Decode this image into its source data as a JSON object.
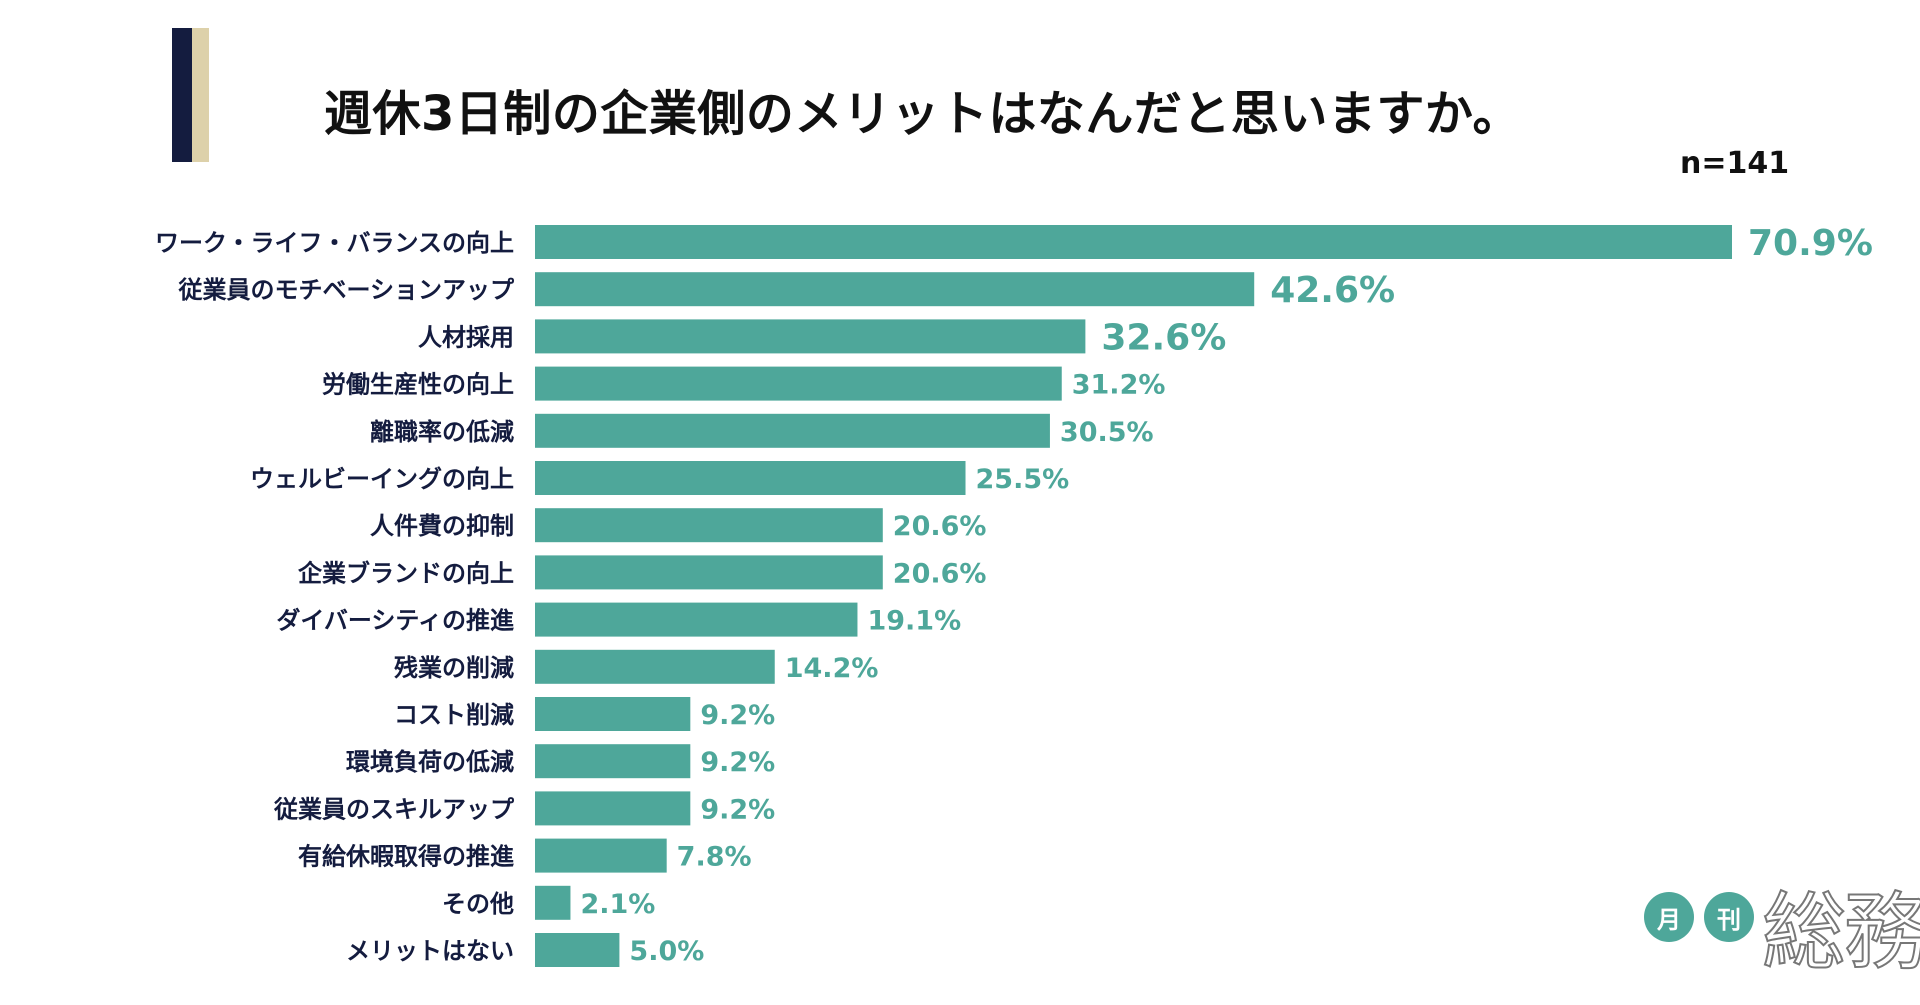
{
  "title": "週休3日制の企業側のメリットはなんだと思いますか。",
  "sample_size": "n=141",
  "logo": {
    "circle1": "月",
    "circle2": "刊",
    "main": "総務"
  },
  "colors": {
    "bar": "#4ea79a",
    "value_text": "#4ea79a",
    "label_text": "#141c3f",
    "accent_navy": "#141c3f",
    "accent_beige": "#ddd1aa"
  },
  "chart_data": {
    "type": "bar",
    "orientation": "horizontal",
    "unit": "%",
    "categories": [
      "ワーク・ライフ・バランスの向上",
      "従業員のモチベーションアップ",
      "人材採用",
      "労働生産性の向上",
      "離職率の低減",
      "ウェルビーイングの向上",
      "人件費の抑制",
      "企業ブランドの向上",
      "ダイバーシティの推進",
      "残業の削減",
      "コスト削減",
      "環境負荷の低減",
      "従業員のスキルアップ",
      "有給休暇取得の推進",
      "その他",
      "メリットはない"
    ],
    "values": [
      70.9,
      42.6,
      32.6,
      31.2,
      30.5,
      25.5,
      20.6,
      20.6,
      19.1,
      14.2,
      9.2,
      9.2,
      9.2,
      7.8,
      2.1,
      5.0
    ],
    "value_labels": [
      "70.9%",
      "42.6%",
      "32.6%",
      "31.2%",
      "30.5%",
      "25.5%",
      "20.6%",
      "20.6%",
      "19.1%",
      "14.2%",
      "9.2%",
      "9.2%",
      "9.2%",
      "7.8%",
      "2.1%",
      "5.0%"
    ],
    "highlight_top": 3,
    "xlim": [
      0,
      70.9
    ],
    "grid": false,
    "legend": "none"
  }
}
